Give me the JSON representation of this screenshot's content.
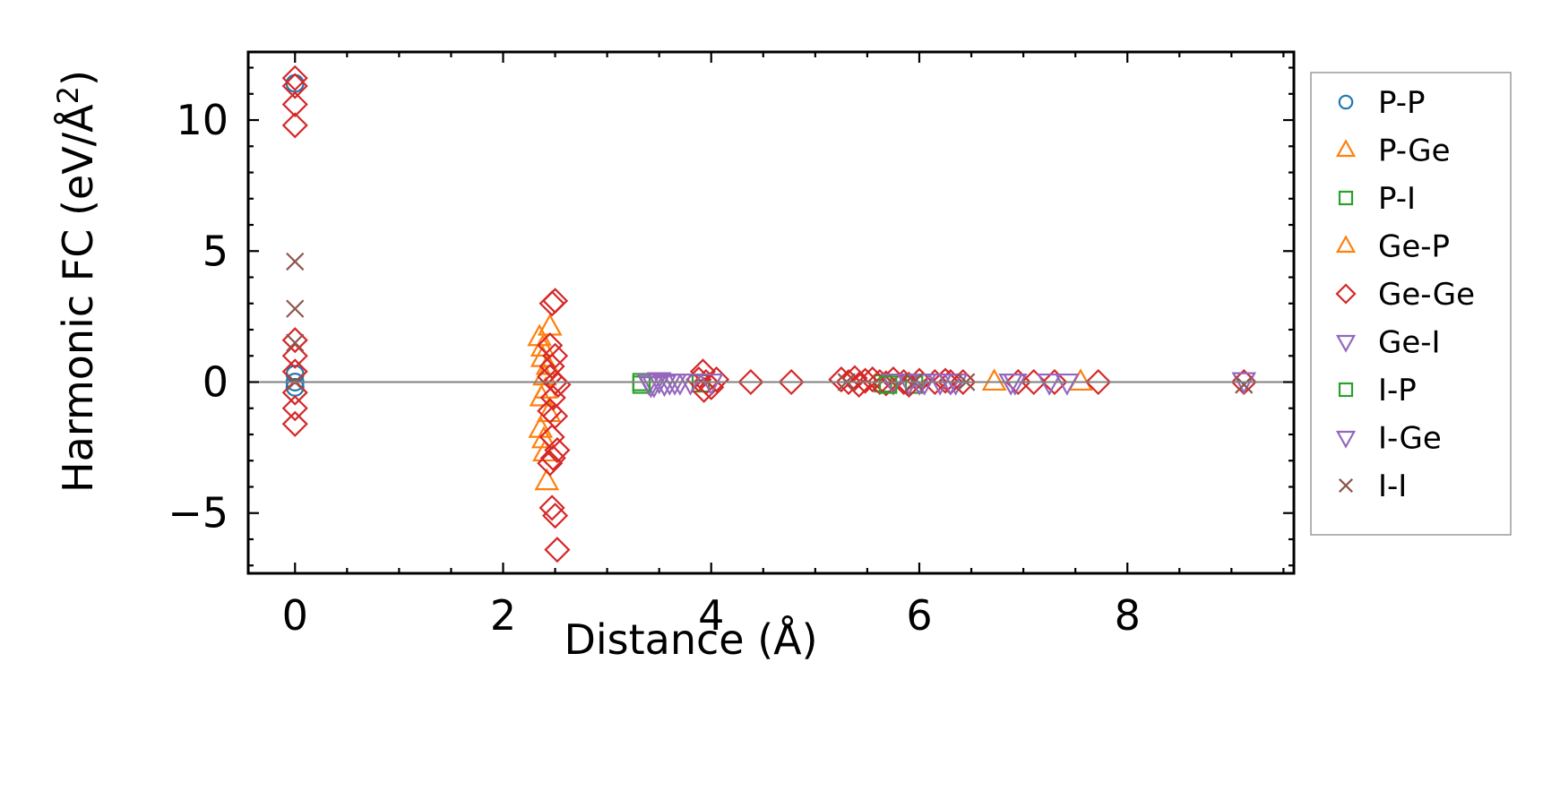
{
  "chart_data": {
    "type": "scatter",
    "xlabel": "Distance (Å)",
    "ylabel_main": "Harmonic FC (eV/Å",
    "ylabel_sup": "2",
    "ylabel_close": ")",
    "xlim": [
      -0.45,
      9.6
    ],
    "ylim": [
      -7.3,
      12.6
    ],
    "xticks": [
      0,
      2,
      4,
      6,
      8
    ],
    "xtick_labels": [
      "0",
      "2",
      "4",
      "6",
      "8"
    ],
    "yticks": [
      -5,
      0,
      5,
      10
    ],
    "ytick_labels": [
      "−5",
      "0",
      "5",
      "10"
    ],
    "zero_line": true,
    "grid": false,
    "legend_position": "outside-right",
    "series": [
      {
        "name": "P-P",
        "marker": "circle",
        "color": "#1f77b4",
        "points": [
          [
            0,
            11.4
          ],
          [
            0,
            0.3
          ],
          [
            0,
            0.0
          ],
          [
            0,
            -0.2
          ]
        ]
      },
      {
        "name": "P-Ge",
        "marker": "triangle-up",
        "color": "#ff7f0e",
        "points": [
          [
            2.35,
            1.7
          ],
          [
            2.38,
            0.9
          ],
          [
            2.4,
            0.2
          ],
          [
            2.37,
            -0.6
          ],
          [
            2.36,
            -1.8
          ],
          [
            2.4,
            -2.7
          ],
          [
            2.42,
            -3.8
          ],
          [
            2.45,
            2.1
          ],
          [
            2.44,
            -1.2
          ],
          [
            6.72,
            0.0
          ],
          [
            7.55,
            0.0
          ]
        ]
      },
      {
        "name": "P-I",
        "marker": "square",
        "color": "#2ca02c",
        "points": [
          [
            3.33,
            0.0
          ],
          [
            3.9,
            -0.05
          ],
          [
            5.65,
            -0.05
          ],
          [
            5.95,
            -0.1
          ]
        ]
      },
      {
        "name": "Ge-P",
        "marker": "triangle-up",
        "color": "#ff7f0e",
        "points": [
          [
            2.38,
            1.3
          ],
          [
            2.41,
            -0.3
          ],
          [
            2.39,
            -2.2
          ],
          [
            2.43,
            0.6
          ]
        ]
      },
      {
        "name": "Ge-Ge",
        "marker": "diamond",
        "color": "#d62728",
        "points": [
          [
            0,
            11.6
          ],
          [
            0,
            11.3
          ],
          [
            0,
            10.6
          ],
          [
            0,
            9.8
          ],
          [
            0,
            1.6
          ],
          [
            0,
            1.0
          ],
          [
            0,
            0.4
          ],
          [
            0,
            -0.4
          ],
          [
            0,
            -1.0
          ],
          [
            0,
            -1.6
          ],
          [
            2.47,
            3.0
          ],
          [
            2.5,
            3.1
          ],
          [
            2.45,
            1.4
          ],
          [
            2.5,
            1.0
          ],
          [
            2.47,
            0.6
          ],
          [
            2.45,
            0.2
          ],
          [
            2.5,
            0.0
          ],
          [
            2.53,
            -0.1
          ],
          [
            2.48,
            -0.6
          ],
          [
            2.45,
            -1.1
          ],
          [
            2.5,
            -1.3
          ],
          [
            2.47,
            -2.1
          ],
          [
            2.52,
            -2.6
          ],
          [
            2.48,
            -2.9
          ],
          [
            2.45,
            -3.1
          ],
          [
            2.47,
            -4.8
          ],
          [
            2.5,
            -5.1
          ],
          [
            2.52,
            -6.4
          ],
          [
            3.88,
            0.1
          ],
          [
            3.92,
            0.4
          ],
          [
            3.95,
            0.0
          ],
          [
            4.0,
            -0.2
          ],
          [
            3.93,
            -0.3
          ],
          [
            4.05,
            0.1
          ],
          [
            4.38,
            0.0
          ],
          [
            4.77,
            0.0
          ],
          [
            5.25,
            0.1
          ],
          [
            5.32,
            0.0
          ],
          [
            5.38,
            0.15
          ],
          [
            5.42,
            -0.1
          ],
          [
            5.48,
            0.05
          ],
          [
            5.55,
            0.1
          ],
          [
            5.62,
            0.0
          ],
          [
            5.68,
            -0.05
          ],
          [
            5.75,
            0.1
          ],
          [
            5.85,
            0.0
          ],
          [
            5.9,
            -0.1
          ],
          [
            6.0,
            0.05
          ],
          [
            6.15,
            0.0
          ],
          [
            6.25,
            0.05
          ],
          [
            6.3,
            0.0
          ],
          [
            6.42,
            0.0
          ],
          [
            6.95,
            0.0
          ],
          [
            7.1,
            0.0
          ],
          [
            7.3,
            0.0
          ],
          [
            7.72,
            0.0
          ],
          [
            9.12,
            0.0
          ]
        ]
      },
      {
        "name": "Ge-I",
        "marker": "triangle-down",
        "color": "#9467bd",
        "points": [
          [
            3.4,
            0.0
          ],
          [
            3.45,
            -0.1
          ],
          [
            3.5,
            0.05
          ],
          [
            3.55,
            -0.05
          ],
          [
            3.6,
            0.0
          ],
          [
            3.7,
            0.0
          ],
          [
            3.8,
            0.0
          ],
          [
            5.75,
            0.0
          ],
          [
            5.9,
            0.0
          ],
          [
            6.05,
            0.0
          ],
          [
            6.2,
            0.0
          ],
          [
            6.35,
            0.0
          ],
          [
            6.88,
            0.0
          ],
          [
            7.25,
            0.0
          ],
          [
            7.42,
            0.0
          ],
          [
            9.12,
            0.05
          ]
        ]
      },
      {
        "name": "I-P",
        "marker": "square",
        "color": "#2ca02c",
        "points": [
          [
            3.33,
            -0.1
          ],
          [
            5.7,
            -0.1
          ]
        ]
      },
      {
        "name": "I-Ge",
        "marker": "triangle-down",
        "color": "#9467bd",
        "points": [
          [
            3.42,
            -0.1
          ],
          [
            3.65,
            0.0
          ],
          [
            4.0,
            0.0
          ],
          [
            6.0,
            0.0
          ],
          [
            6.3,
            0.0
          ],
          [
            6.92,
            0.0
          ]
        ]
      },
      {
        "name": "I-I",
        "marker": "x",
        "color": "#8c564b",
        "points": [
          [
            0,
            4.6
          ],
          [
            0,
            2.8
          ],
          [
            0,
            1.5
          ],
          [
            0,
            0.0
          ],
          [
            5.3,
            0.0
          ],
          [
            5.95,
            0.0
          ],
          [
            6.45,
            0.0
          ],
          [
            9.12,
            -0.1
          ]
        ]
      }
    ]
  }
}
